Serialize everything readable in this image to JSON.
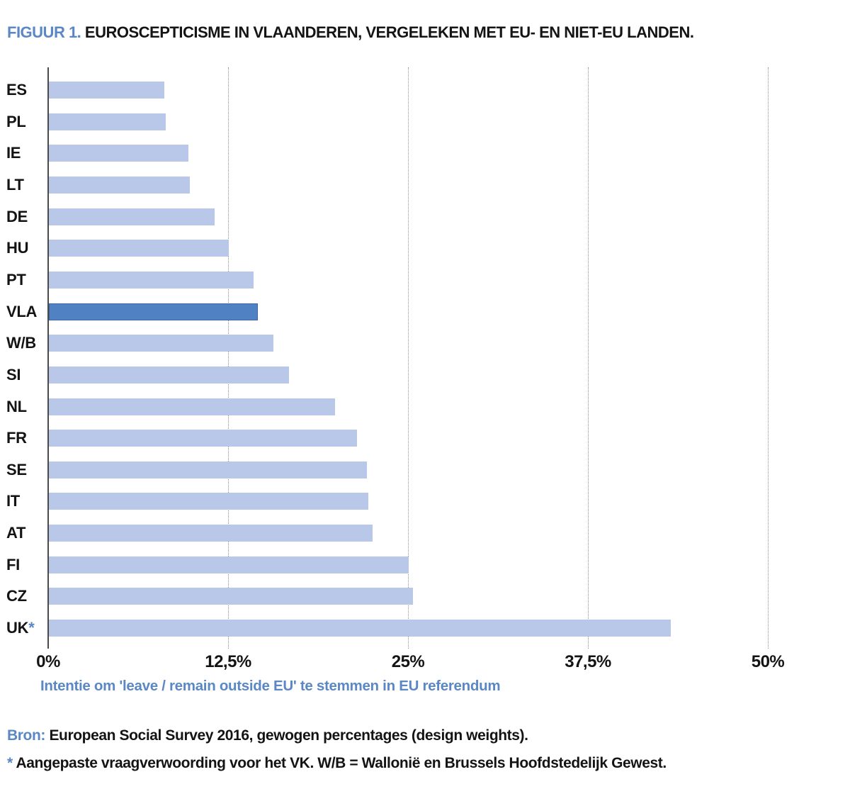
{
  "title": {
    "prefix": "FIGUUR 1.",
    "text": "EUROSCEPTICISME IN VLAANDEREN, VERGELEKEN MET EU- EN NIET-EU LANDEN."
  },
  "chart_data": {
    "type": "bar",
    "orientation": "horizontal",
    "categories": [
      "ES",
      "PL",
      "IE",
      "LT",
      "DE",
      "HU",
      "PT",
      "VLA",
      "W/B",
      "SI",
      "NL",
      "FR",
      "SE",
      "IT",
      "AT",
      "FI",
      "CZ",
      "UK*"
    ],
    "values": [
      8.0,
      8.1,
      9.7,
      9.8,
      11.5,
      12.5,
      14.2,
      14.5,
      15.6,
      16.7,
      19.9,
      21.4,
      22.1,
      22.2,
      22.5,
      25.0,
      25.3,
      43.2
    ],
    "highlighted_category": "VLA",
    "xlim": [
      0,
      50
    ],
    "x_tick_values": [
      0,
      12.5,
      25,
      37.5,
      50
    ],
    "x_ticks": [
      "0%",
      "12,5%",
      "25%",
      "37,5%",
      "50%"
    ],
    "xlabel": "Intentie om 'leave / remain outside EU' te stemmen in EU referendum",
    "grid": "vertical-dotted",
    "legend": "none"
  },
  "footer": {
    "source_label": "Bron:",
    "source_text": "European Social Survey 2016, gewogen percentages (design weights).",
    "note_marker": "*",
    "note_text": "Aangepaste vraagverwoording voor het VK. W/B = Wallonië en Brussels Hoofdstedelijk Gewest."
  },
  "colors": {
    "accent": "#5b87c5",
    "bar": "#b9c7e8",
    "highlight": "#5081c3",
    "axis": "#4a4a4a",
    "grid": "#8f8f8f",
    "text": "#141414",
    "background": "#ffffff"
  }
}
